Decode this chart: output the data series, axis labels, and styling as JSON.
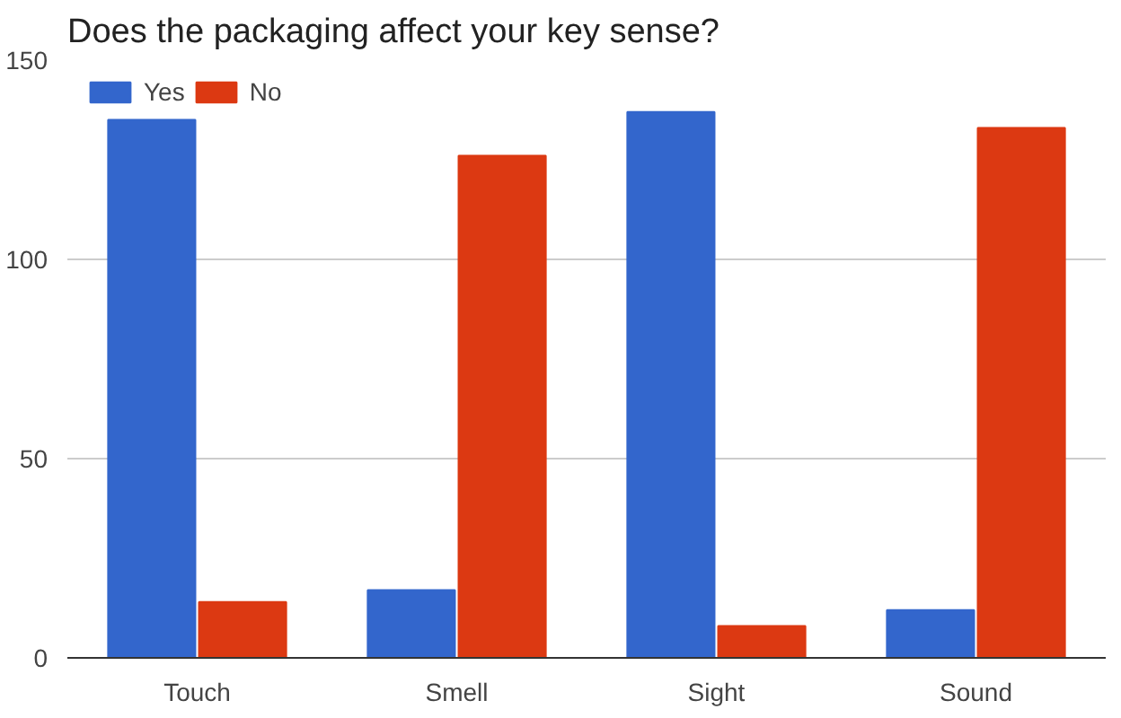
{
  "chart_data": {
    "type": "bar",
    "title": "Does the packaging affect your key sense?",
    "categories": [
      "Touch",
      "Smell",
      "Sight",
      "Sound"
    ],
    "series": [
      {
        "name": "Yes",
        "color": "#3366cc",
        "values": [
          135,
          17,
          137,
          12
        ]
      },
      {
        "name": "No",
        "color": "#dc3912",
        "values": [
          14,
          126,
          8,
          133
        ]
      }
    ],
    "ylim": [
      0,
      150
    ],
    "yticks": [
      0,
      50,
      100,
      150
    ],
    "grid": "y",
    "legend": "top left"
  }
}
